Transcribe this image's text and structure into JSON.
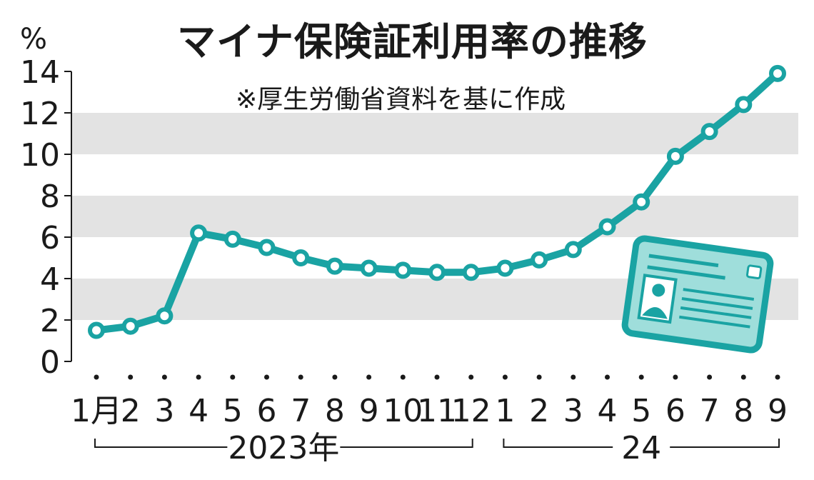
{
  "title": "マイナ保険証利用率の推移",
  "source_note": "※厚生労働省資料を基に作成",
  "unit": "%",
  "colors": {
    "line": "#1aa3a3",
    "band": "#e3e3e3",
    "card_fill": "#9fdedb",
    "card_stroke": "#1aa3a3"
  },
  "icon": "my-number-card-icon",
  "year_groups": [
    {
      "label": "2023年",
      "from": 0,
      "to": 11
    },
    {
      "label": "24",
      "from": 12,
      "to": 20
    }
  ],
  "chart_data": {
    "type": "line",
    "title": "マイナ保険証利用率の推移",
    "ylabel": "%",
    "ylim": [
      0,
      14
    ],
    "yticks": [
      "0",
      "2",
      "4",
      "6",
      "8",
      "10",
      "12",
      "14"
    ],
    "grid": "alternating horizontal bands",
    "categories": [
      "1月",
      "2",
      "3",
      "4",
      "5",
      "6",
      "7",
      "8",
      "9",
      "10",
      "11",
      "12",
      "1",
      "2",
      "3",
      "4",
      "5",
      "6",
      "7",
      "8",
      "9"
    ],
    "series": [
      {
        "values": [
          1.5,
          1.7,
          2.2,
          6.2,
          5.9,
          5.5,
          5.0,
          4.6,
          4.5,
          4.4,
          4.3,
          4.3,
          4.5,
          4.9,
          5.4,
          6.5,
          7.7,
          9.9,
          11.1,
          12.4,
          13.9
        ]
      }
    ]
  }
}
